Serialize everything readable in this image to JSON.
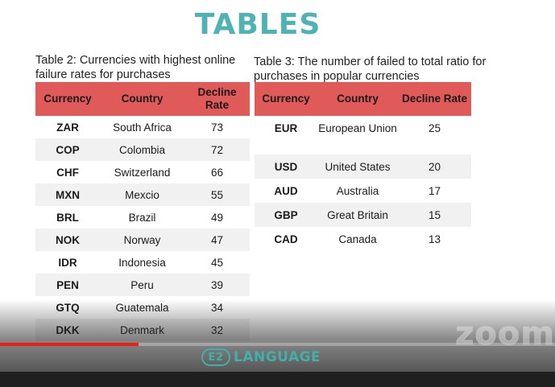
{
  "slide": {
    "title": "TABLES"
  },
  "table2": {
    "caption": "Table 2: Currencies with highest online failure rates for purchases",
    "headers": [
      "Currency",
      "Country",
      "Decline Rate"
    ],
    "rows": [
      [
        "ZAR",
        "South Africa",
        "73"
      ],
      [
        "COP",
        "Colombia",
        "72"
      ],
      [
        "CHF",
        "Switzerland",
        "66"
      ],
      [
        "MXN",
        "Mexcio",
        "55"
      ],
      [
        "BRL",
        "Brazil",
        "49"
      ],
      [
        "NOK",
        "Norway",
        "47"
      ],
      [
        "IDR",
        "Indonesia",
        "45"
      ],
      [
        "PEN",
        "Peru",
        "39"
      ],
      [
        "GTQ",
        "Guatemala",
        "34"
      ],
      [
        "DKK",
        "Denmark",
        "32"
      ]
    ]
  },
  "table3": {
    "caption": "Table 3: The number of failed to total ratio for purchases in popular currencies",
    "headers": [
      "Currency",
      "Country",
      "Decline Rate"
    ],
    "rows": [
      [
        "EUR",
        "European Union",
        "25"
      ],
      [
        "USD",
        "United States",
        "20"
      ],
      [
        "AUD",
        "Australia",
        "17"
      ],
      [
        "GBP",
        "Great Britain",
        "15"
      ],
      [
        "CAD",
        "Canada",
        "13"
      ]
    ]
  },
  "player": {
    "watermark": "zoom",
    "brand_logo": "E2",
    "brand_text": "LANGUAGE",
    "progress_fraction": 0.25,
    "progress_color": "#e62117"
  },
  "colors": {
    "title": "#4fb3b3",
    "header": "#e05a5a",
    "brand": "#3fb0aa"
  }
}
